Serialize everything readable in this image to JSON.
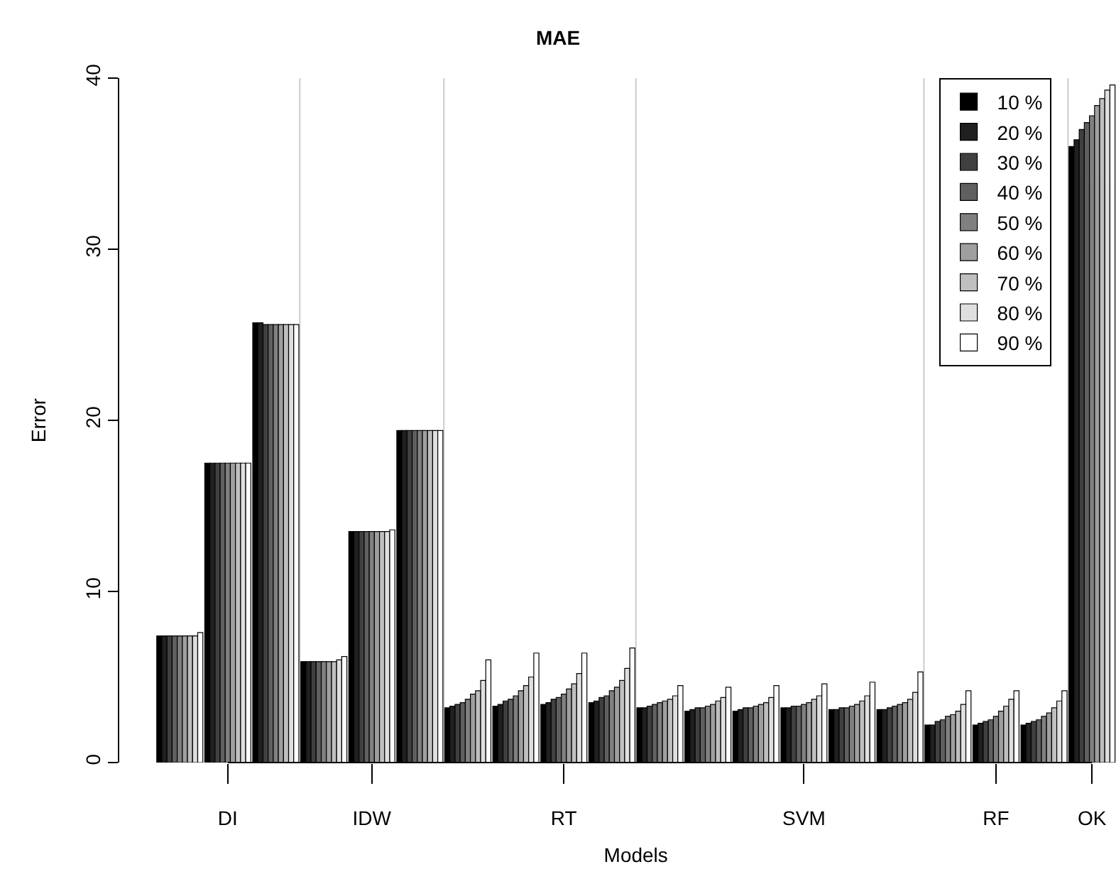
{
  "chart_data": {
    "type": "bar",
    "title": "MAE",
    "xlabel": "Models",
    "ylabel": "Error",
    "categories": [
      null,
      "DI",
      null,
      null,
      "IDW",
      null,
      null,
      null,
      "RT",
      null,
      null,
      null,
      null,
      "SVM",
      null,
      null,
      null,
      "RF",
      null,
      "OK"
    ],
    "ylim": [
      0,
      40
    ],
    "yticks": [
      0,
      10,
      20,
      30,
      40
    ],
    "series": [
      {
        "name": "10 %",
        "color": "#000000",
        "values": [
          7.4,
          17.5,
          25.7,
          5.9,
          13.5,
          19.4,
          3.2,
          3.3,
          3.4,
          3.5,
          3.2,
          3.0,
          3.0,
          3.2,
          3.1,
          3.1,
          2.2,
          2.2,
          2.2,
          36.0
        ]
      },
      {
        "name": "20 %",
        "color": "#202020",
        "values": [
          7.4,
          17.5,
          25.7,
          5.9,
          13.5,
          19.4,
          3.3,
          3.4,
          3.5,
          3.6,
          3.2,
          3.1,
          3.1,
          3.2,
          3.1,
          3.1,
          2.2,
          2.3,
          2.3,
          36.4
        ]
      },
      {
        "name": "30 %",
        "color": "#404040",
        "values": [
          7.4,
          17.5,
          25.6,
          5.9,
          13.5,
          19.4,
          3.4,
          3.6,
          3.7,
          3.8,
          3.3,
          3.2,
          3.2,
          3.3,
          3.2,
          3.2,
          2.4,
          2.4,
          2.4,
          37.0
        ]
      },
      {
        "name": "40 %",
        "color": "#606060",
        "values": [
          7.4,
          17.5,
          25.6,
          5.9,
          13.5,
          19.4,
          3.5,
          3.7,
          3.8,
          3.9,
          3.4,
          3.2,
          3.2,
          3.3,
          3.2,
          3.3,
          2.5,
          2.5,
          2.5,
          37.4
        ]
      },
      {
        "name": "50 %",
        "color": "#808080",
        "values": [
          7.4,
          17.5,
          25.6,
          5.9,
          13.5,
          19.4,
          3.7,
          3.9,
          4.0,
          4.2,
          3.5,
          3.3,
          3.3,
          3.4,
          3.3,
          3.4,
          2.7,
          2.7,
          2.7,
          37.8
        ]
      },
      {
        "name": "60 %",
        "color": "#9f9f9f",
        "values": [
          7.4,
          17.5,
          25.6,
          5.9,
          13.5,
          19.4,
          4.0,
          4.2,
          4.3,
          4.4,
          3.6,
          3.4,
          3.4,
          3.5,
          3.4,
          3.5,
          2.8,
          3.0,
          2.9,
          38.4
        ]
      },
      {
        "name": "70 %",
        "color": "#bfbfbf",
        "values": [
          7.4,
          17.5,
          25.6,
          5.9,
          13.5,
          19.4,
          4.2,
          4.5,
          4.6,
          4.8,
          3.7,
          3.6,
          3.5,
          3.7,
          3.6,
          3.7,
          3.0,
          3.3,
          3.2,
          38.8
        ]
      },
      {
        "name": "80 %",
        "color": "#dfdfdf",
        "values": [
          7.4,
          17.5,
          25.6,
          6.0,
          13.5,
          19.4,
          4.8,
          5.0,
          5.2,
          5.5,
          3.9,
          3.8,
          3.8,
          3.9,
          3.9,
          4.1,
          3.4,
          3.7,
          3.6,
          39.3
        ]
      },
      {
        "name": "90 %",
        "color": "#ffffff",
        "values": [
          7.6,
          17.5,
          25.6,
          6.2,
          13.6,
          19.4,
          6.0,
          6.4,
          6.4,
          6.7,
          4.5,
          4.4,
          4.5,
          4.6,
          4.7,
          5.3,
          4.2,
          4.2,
          4.2,
          39.6
        ]
      }
    ],
    "grid": false,
    "legend": "top right"
  }
}
